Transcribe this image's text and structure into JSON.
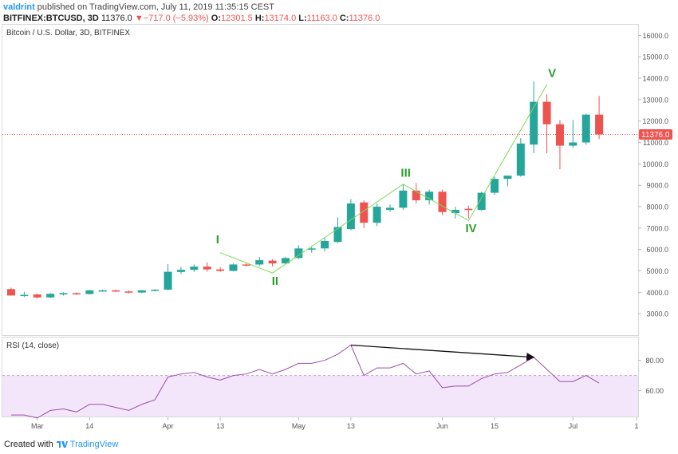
{
  "header": {
    "publisher": "valdrint",
    "published_text": "published on TradingView.com, July 11, 2019 11:35:15 CEST",
    "symbol": "BITFINEX:BTCUSD, 3D",
    "last": "11376.0",
    "change_arrow": "▼",
    "change": "−717.0 (−5.93%)",
    "o_label": "O:",
    "o_value": "12301.5",
    "h_label": "H:",
    "h_value": "13174.0",
    "l_label": "L:",
    "l_value": "11163.0",
    "c_label": "C:",
    "c_value": "11376.0"
  },
  "footer": {
    "created_with": "Created with",
    "brand": "TradingView"
  },
  "colors": {
    "up": "#26a69a",
    "down": "#ef5350",
    "wave": "#7ed957",
    "wave_label": "#2e9e2e",
    "rsi_line": "#9c4da8",
    "rsi_band": "#f3e6fb",
    "axis_text": "#555555",
    "price_line": "#ef5350",
    "divergence": "#111111"
  },
  "chart_data": [
    {
      "type": "candlestick",
      "title": "Bitcoin / U.S. Dollar, 3D, BITFINEX",
      "ylim": [
        2000,
        16500
      ],
      "y_ticks": [
        "16000.0",
        "15000.0",
        "14000.0",
        "13000.0",
        "12000.0",
        "11000.0",
        "10000.0",
        "9000.0",
        "8000.0",
        "7000.0",
        "6000.0",
        "5000.0",
        "4000.0",
        "3000.0"
      ],
      "x_ticks": [
        {
          "label": "Mar",
          "index": 2
        },
        {
          "label": "14",
          "index": 6
        },
        {
          "label": "Apr",
          "index": 12
        },
        {
          "label": "13",
          "index": 16
        },
        {
          "label": "May",
          "index": 22
        },
        {
          "label": "13",
          "index": 26
        },
        {
          "label": "Jun",
          "index": 33
        },
        {
          "label": "15",
          "index": 37
        },
        {
          "label": "Jul",
          "index": 43
        },
        {
          "label": "1",
          "index": 47
        }
      ],
      "last_price": 11376.0,
      "last_price_label": "11376.0",
      "candles": [
        {
          "o": 4150,
          "h": 4220,
          "l": 3850,
          "c": 3850
        },
        {
          "o": 3880,
          "h": 4020,
          "l": 3780,
          "c": 3880
        },
        {
          "o": 3900,
          "h": 3950,
          "l": 3720,
          "c": 3760
        },
        {
          "o": 3760,
          "h": 3960,
          "l": 3740,
          "c": 3930
        },
        {
          "o": 3900,
          "h": 4000,
          "l": 3850,
          "c": 3960
        },
        {
          "o": 3960,
          "h": 4000,
          "l": 3880,
          "c": 3930
        },
        {
          "o": 3920,
          "h": 4120,
          "l": 3900,
          "c": 4090
        },
        {
          "o": 4080,
          "h": 4120,
          "l": 4030,
          "c": 4090
        },
        {
          "o": 4090,
          "h": 4120,
          "l": 4010,
          "c": 4040
        },
        {
          "o": 4040,
          "h": 4080,
          "l": 3950,
          "c": 3990
        },
        {
          "o": 3990,
          "h": 4110,
          "l": 3960,
          "c": 4090
        },
        {
          "o": 4080,
          "h": 4150,
          "l": 4050,
          "c": 4120
        },
        {
          "o": 4120,
          "h": 5320,
          "l": 4100,
          "c": 4960
        },
        {
          "o": 4950,
          "h": 5180,
          "l": 4850,
          "c": 5050
        },
        {
          "o": 5050,
          "h": 5300,
          "l": 4950,
          "c": 5200
        },
        {
          "o": 5200,
          "h": 5400,
          "l": 4960,
          "c": 5070
        },
        {
          "o": 5070,
          "h": 5180,
          "l": 4950,
          "c": 5000
        },
        {
          "o": 5000,
          "h": 5350,
          "l": 4980,
          "c": 5300
        },
        {
          "o": 5300,
          "h": 5350,
          "l": 5200,
          "c": 5280
        },
        {
          "o": 5300,
          "h": 5650,
          "l": 5230,
          "c": 5500
        },
        {
          "o": 5480,
          "h": 5550,
          "l": 5200,
          "c": 5350
        },
        {
          "o": 5350,
          "h": 5650,
          "l": 5320,
          "c": 5600
        },
        {
          "o": 5600,
          "h": 6200,
          "l": 5550,
          "c": 6050
        },
        {
          "o": 6000,
          "h": 6120,
          "l": 5850,
          "c": 6050
        },
        {
          "o": 6050,
          "h": 6550,
          "l": 5900,
          "c": 6400
        },
        {
          "o": 6350,
          "h": 7500,
          "l": 6300,
          "c": 7050
        },
        {
          "o": 6950,
          "h": 8350,
          "l": 6900,
          "c": 8150
        },
        {
          "o": 8200,
          "h": 8300,
          "l": 7000,
          "c": 7250
        },
        {
          "o": 7250,
          "h": 8150,
          "l": 7100,
          "c": 8000
        },
        {
          "o": 7850,
          "h": 8100,
          "l": 7750,
          "c": 7950
        },
        {
          "o": 7950,
          "h": 9050,
          "l": 7850,
          "c": 8750
        },
        {
          "o": 8750,
          "h": 9100,
          "l": 8150,
          "c": 8300
        },
        {
          "o": 8300,
          "h": 8800,
          "l": 8100,
          "c": 8700
        },
        {
          "o": 8700,
          "h": 8800,
          "l": 7600,
          "c": 7750
        },
        {
          "o": 7700,
          "h": 8000,
          "l": 7450,
          "c": 7850
        },
        {
          "o": 7900,
          "h": 8050,
          "l": 7450,
          "c": 7870
        },
        {
          "o": 7850,
          "h": 8700,
          "l": 7800,
          "c": 8650
        },
        {
          "o": 8650,
          "h": 9400,
          "l": 8550,
          "c": 9300
        },
        {
          "o": 9300,
          "h": 9450,
          "l": 8950,
          "c": 9450
        },
        {
          "o": 9450,
          "h": 11200,
          "l": 9400,
          "c": 10950
        },
        {
          "o": 10900,
          "h": 13850,
          "l": 10500,
          "c": 12900
        },
        {
          "o": 12900,
          "h": 13250,
          "l": 10500,
          "c": 11850
        },
        {
          "o": 11850,
          "h": 12050,
          "l": 9750,
          "c": 10850
        },
        {
          "o": 10850,
          "h": 12050,
          "l": 10750,
          "c": 11000
        },
        {
          "o": 11000,
          "h": 12350,
          "l": 10900,
          "c": 12300
        },
        {
          "o": 12300,
          "h": 13174,
          "l": 11163,
          "c": 11376
        }
      ],
      "wave": {
        "points": [
          {
            "index": 16,
            "price": 5850
          },
          {
            "index": 20,
            "price": 4900
          },
          {
            "index": 30,
            "price": 9050
          },
          {
            "index": 35,
            "price": 7350
          },
          {
            "index": 41,
            "price": 13700
          }
        ],
        "labels": [
          {
            "text": "I",
            "index": 15.8,
            "price": 6280
          },
          {
            "text": "II",
            "index": 20.2,
            "price": 4340
          },
          {
            "text": "III",
            "index": 30.2,
            "price": 9400
          },
          {
            "text": "IV",
            "index": 35.2,
            "price": 6800
          },
          {
            "text": "V",
            "index": 41.4,
            "price": 14050
          }
        ]
      }
    },
    {
      "type": "line",
      "title": "RSI (14, close)",
      "ylim": [
        43,
        95
      ],
      "y_ticks": [
        "80.00",
        "60.00"
      ],
      "band": [
        30,
        70
      ],
      "values": [
        44,
        44,
        42,
        47,
        48,
        46,
        51,
        51,
        49,
        47,
        51,
        54,
        69,
        71,
        72,
        69,
        67,
        70,
        71,
        74,
        71,
        74,
        78,
        78,
        80,
        84,
        90,
        70,
        75,
        75,
        78,
        71,
        73,
        62,
        63,
        63,
        68,
        71,
        72,
        77,
        82,
        74,
        66,
        66,
        70,
        65
      ],
      "divergence": {
        "from": {
          "index": 26,
          "value": 90
        },
        "to": {
          "index": 40,
          "value": 82
        }
      }
    }
  ]
}
